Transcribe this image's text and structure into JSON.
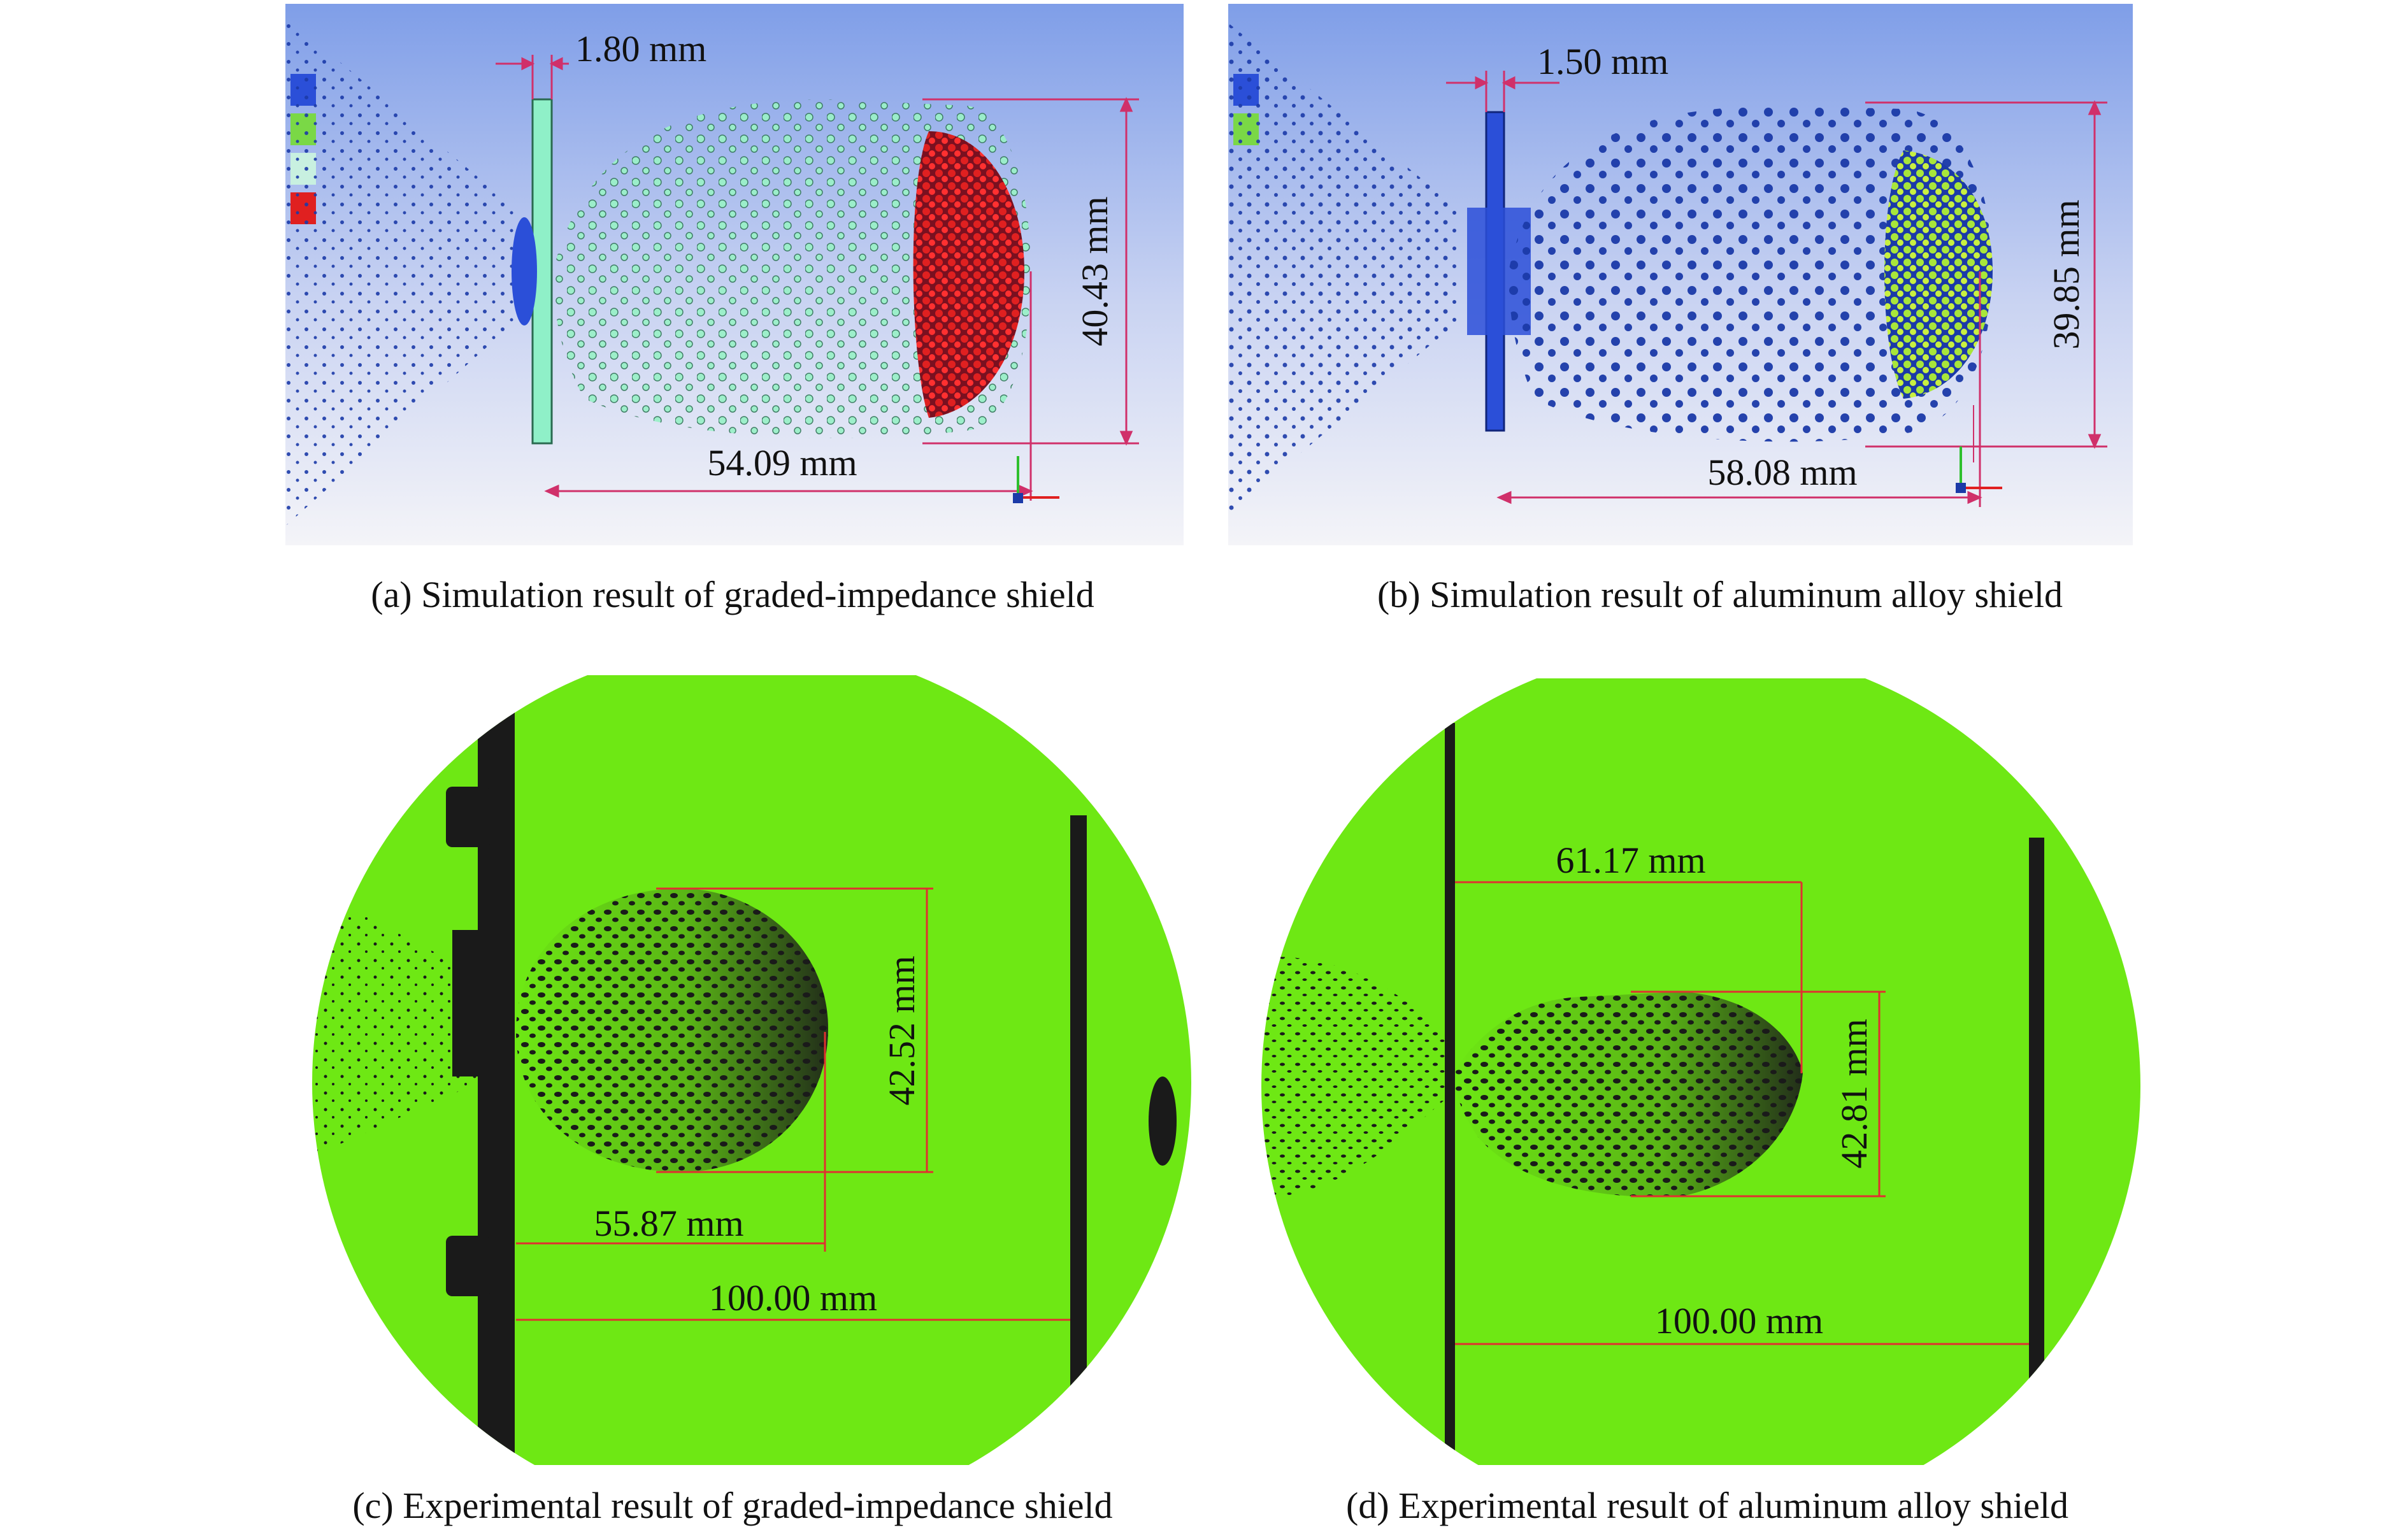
{
  "panels": {
    "a": {
      "caption": "(a) Simulation result of graded-impedance shield",
      "thickness": "1.80 mm",
      "width": "40.43 mm",
      "length": "54.09 mm",
      "colors": {
        "background_top": "#7f9ee8",
        "background_bottom": "#f2f2f6",
        "plate": "#8ff0c8",
        "front": "#e02020",
        "body": "#9af0c8",
        "tail": "#1b3aa8"
      }
    },
    "b": {
      "caption": "(b) Simulation result of aluminum alloy shield",
      "thickness": "1.50 mm",
      "width": "39.85 mm",
      "length": "58.08 mm",
      "colors": {
        "background_top": "#7f9ee8",
        "background_bottom": "#f2f2f6",
        "plate": "#2b4fd8",
        "front": "#a8e63a",
        "body": "#1b3aa8",
        "tail": "#1b3aa8"
      }
    },
    "c": {
      "caption": "(c) Experimental result of graded-impedance shield",
      "width": "42.52 mm",
      "length": "55.87 mm",
      "distance": "100.00 mm",
      "colors": {
        "background": "#6ee814",
        "debris": "#1a1a1a",
        "dimension": "#e03030"
      }
    },
    "d": {
      "caption": "(d) Experimental result of aluminum alloy shield",
      "length": "61.17 mm",
      "width": "42.81 mm",
      "distance": "100.00 mm",
      "colors": {
        "background": "#6ee814",
        "debris": "#1a1a1a",
        "dimension": "#e03030"
      }
    }
  }
}
